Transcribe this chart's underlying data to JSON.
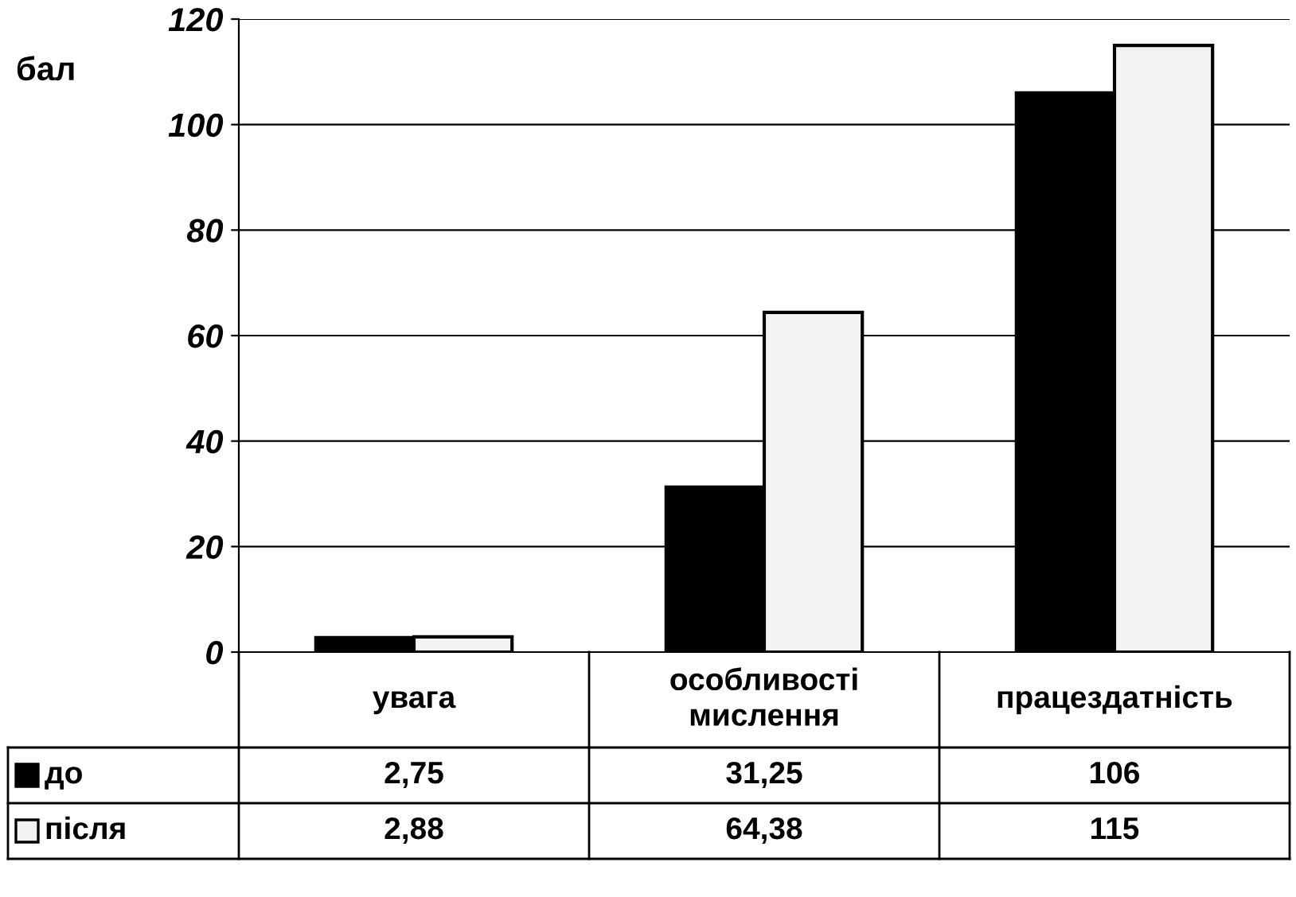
{
  "chart_data": {
    "type": "bar",
    "ylabel": "бал",
    "categories": [
      "увага",
      "особливості\nмислення",
      "працездатність"
    ],
    "series": [
      {
        "name": "до",
        "color": "#000000",
        "values": [
          2.75,
          31.25,
          106
        ],
        "value_labels": [
          "2,75",
          "31,25",
          "106"
        ]
      },
      {
        "name": "після",
        "color": "#f2f2f2",
        "values": [
          2.88,
          64.38,
          115
        ],
        "value_labels": [
          "2,88",
          "64,38",
          "115"
        ]
      }
    ],
    "ylim": [
      0,
      120
    ],
    "yticks": [
      0,
      20,
      40,
      60,
      80,
      100,
      120
    ],
    "grid": "y",
    "legend": "bottom"
  }
}
